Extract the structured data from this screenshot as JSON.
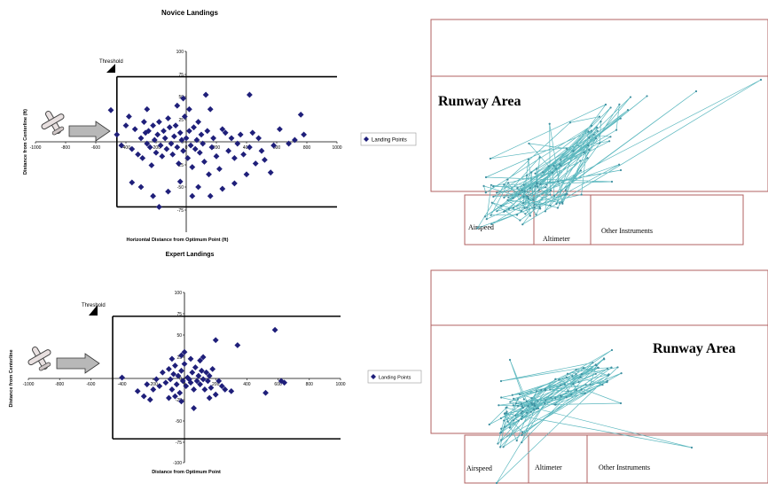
{
  "chart_data": [
    {
      "type": "scatter",
      "title": "Novice Landings",
      "xlabel": "Horizontal Distance from Optimum Point (ft)",
      "ylabel": "Distance from Centerline (ft)",
      "xlim": [
        -1000,
        1000
      ],
      "ylim": [
        -100,
        100
      ],
      "xticks": [
        "-1000",
        "-800",
        "-600",
        "-400",
        "-200",
        "0",
        "200",
        "400",
        "600",
        "800",
        "1000"
      ],
      "yticks": [
        "100",
        "75",
        "50",
        "25",
        "0",
        "-25",
        "-50",
        "-75"
      ],
      "threshold_label": "Threshold",
      "runway_bounds": {
        "x_start": -460,
        "y_top": 72,
        "y_bottom": -72
      },
      "legend": "Landing Points",
      "series": [
        {
          "name": "Landing Points",
          "points": [
            [
              -500,
              35
            ],
            [
              -460,
              8
            ],
            [
              -430,
              -4
            ],
            [
              -400,
              18
            ],
            [
              -380,
              28
            ],
            [
              -360,
              -8
            ],
            [
              -340,
              14
            ],
            [
              -320,
              -14
            ],
            [
              -300,
              4
            ],
            [
              -290,
              -18
            ],
            [
              -280,
              22
            ],
            [
              -270,
              10
            ],
            [
              -260,
              -2
            ],
            [
              -250,
              12
            ],
            [
              -240,
              -6
            ],
            [
              -230,
              -26
            ],
            [
              -220,
              18
            ],
            [
              -210,
              2
            ],
            [
              -200,
              -12
            ],
            [
              -190,
              8
            ],
            [
              -180,
              22
            ],
            [
              -170,
              -4
            ],
            [
              -160,
              -16
            ],
            [
              -150,
              12
            ],
            [
              -140,
              4
            ],
            [
              -130,
              -8
            ],
            [
              -120,
              26
            ],
            [
              -110,
              16
            ],
            [
              -100,
              -2
            ],
            [
              -90,
              -14
            ],
            [
              -80,
              6
            ],
            [
              -70,
              18
            ],
            [
              -60,
              -6
            ],
            [
              -50,
              -24
            ],
            [
              -40,
              10
            ],
            [
              -30,
              2
            ],
            [
              -20,
              -10
            ],
            [
              -10,
              28
            ],
            [
              0,
              4
            ],
            [
              10,
              -18
            ],
            [
              20,
              12
            ],
            [
              30,
              -4
            ],
            [
              40,
              -28
            ],
            [
              50,
              16
            ],
            [
              60,
              -8
            ],
            [
              70,
              2
            ],
            [
              80,
              22
            ],
            [
              90,
              -12
            ],
            [
              100,
              8
            ],
            [
              110,
              -2
            ],
            [
              120,
              -22
            ],
            [
              140,
              12
            ],
            [
              150,
              -36
            ],
            [
              160,
              36
            ],
            [
              170,
              -6
            ],
            [
              180,
              4
            ],
            [
              200,
              -16
            ],
            [
              220,
              -30
            ],
            [
              240,
              14
            ],
            [
              260,
              10
            ],
            [
              280,
              -10
            ],
            [
              300,
              4
            ],
            [
              320,
              -18
            ],
            [
              340,
              -2
            ],
            [
              360,
              8
            ],
            [
              380,
              -14
            ],
            [
              400,
              -36
            ],
            [
              420,
              -6
            ],
            [
              440,
              10
            ],
            [
              460,
              -24
            ],
            [
              480,
              4
            ],
            [
              500,
              -10
            ],
            [
              520,
              -20
            ],
            [
              560,
              -34
            ],
            [
              580,
              -4
            ],
            [
              620,
              14
            ],
            [
              680,
              -2
            ],
            [
              720,
              2
            ],
            [
              760,
              30
            ],
            [
              780,
              8
            ],
            [
              -360,
              -45
            ],
            [
              -300,
              -50
            ],
            [
              -220,
              -60
            ],
            [
              -120,
              -55
            ],
            [
              -40,
              -44
            ],
            [
              40,
              -60
            ],
            [
              80,
              -50
            ],
            [
              160,
              -60
            ],
            [
              240,
              -52
            ],
            [
              320,
              -46
            ],
            [
              -260,
              36
            ],
            [
              -60,
              40
            ],
            [
              20,
              36
            ],
            [
              130,
              52
            ],
            [
              -20,
              48
            ],
            [
              420,
              52
            ],
            [
              -180,
              -72
            ]
          ]
        }
      ]
    },
    {
      "type": "scatter",
      "title": "Expert Landings",
      "xlabel": "Distance from Optimum Point",
      "ylabel": "Distance from Centerline",
      "xlim": [
        -1000,
        1000
      ],
      "ylim": [
        -100,
        100
      ],
      "xticks": [
        "-1000",
        "-800",
        "-600",
        "-400",
        "-200",
        "0",
        "200",
        "400",
        "600",
        "800",
        "1000"
      ],
      "yticks": [
        "100",
        "75",
        "50",
        "25",
        "0",
        "-25",
        "-50",
        "-75",
        "-100"
      ],
      "threshold_label": "Threshold",
      "runway_bounds": {
        "x_start": -460,
        "y_top": 72,
        "y_bottom": -72
      },
      "legend": "Landing Points",
      "series": [
        {
          "name": "Landing Points",
          "points": [
            [
              -400,
              0
            ],
            [
              -300,
              -16
            ],
            [
              -260,
              -22
            ],
            [
              -220,
              -26
            ],
            [
              -200,
              -14
            ],
            [
              -180,
              -2
            ],
            [
              -160,
              -10
            ],
            [
              -140,
              6
            ],
            [
              -120,
              -6
            ],
            [
              -100,
              10
            ],
            [
              -90,
              -2
            ],
            [
              -80,
              -14
            ],
            [
              -70,
              4
            ],
            [
              -60,
              14
            ],
            [
              -50,
              -8
            ],
            [
              -40,
              2
            ],
            [
              -30,
              -18
            ],
            [
              -20,
              8
            ],
            [
              -10,
              -4
            ],
            [
              0,
              16
            ],
            [
              10,
              -10
            ],
            [
              20,
              0
            ],
            [
              30,
              -2
            ],
            [
              40,
              -6
            ],
            [
              50,
              6
            ],
            [
              60,
              -14
            ],
            [
              70,
              12
            ],
            [
              80,
              -4
            ],
            [
              90,
              2
            ],
            [
              100,
              -8
            ],
            [
              110,
              8
            ],
            [
              120,
              -2
            ],
            [
              130,
              -14
            ],
            [
              140,
              6
            ],
            [
              150,
              -4
            ],
            [
              160,
              2
            ],
            [
              170,
              -12
            ],
            [
              180,
              10
            ],
            [
              200,
              -20
            ],
            [
              220,
              -4
            ],
            [
              240,
              -10
            ],
            [
              260,
              -14
            ],
            [
              300,
              -16
            ],
            [
              520,
              -18
            ],
            [
              640,
              -6
            ],
            [
              -240,
              -8
            ],
            [
              -100,
              -24
            ],
            [
              -60,
              -22
            ],
            [
              -20,
              -28
            ],
            [
              -80,
              22
            ],
            [
              -20,
              26
            ],
            [
              40,
              22
            ],
            [
              100,
              20
            ],
            [
              120,
              24
            ],
            [
              0,
              30
            ],
            [
              160,
              -24
            ],
            [
              200,
              44
            ],
            [
              340,
              38
            ],
            [
              580,
              56
            ],
            [
              620,
              -4
            ],
            [
              60,
              -36
            ]
          ]
        }
      ]
    },
    {
      "type": "diagram",
      "title": "Runway Area",
      "instruments": [
        "Airspeed",
        "Altimeter",
        "Other Instruments"
      ]
    },
    {
      "type": "diagram",
      "title": "Runway Area",
      "instruments": [
        "Airspeed",
        "Altimeter",
        "Other Instruments"
      ]
    }
  ],
  "colors": {
    "marker": "#1f1f7a",
    "trace": "#4ab0b8",
    "panel_border": "#b06060",
    "arrow_fill": "#b8b8b8"
  },
  "icons": [
    "airplane-icon",
    "arrow-icon",
    "threshold-flag-icon",
    "diamond-marker-icon"
  ]
}
